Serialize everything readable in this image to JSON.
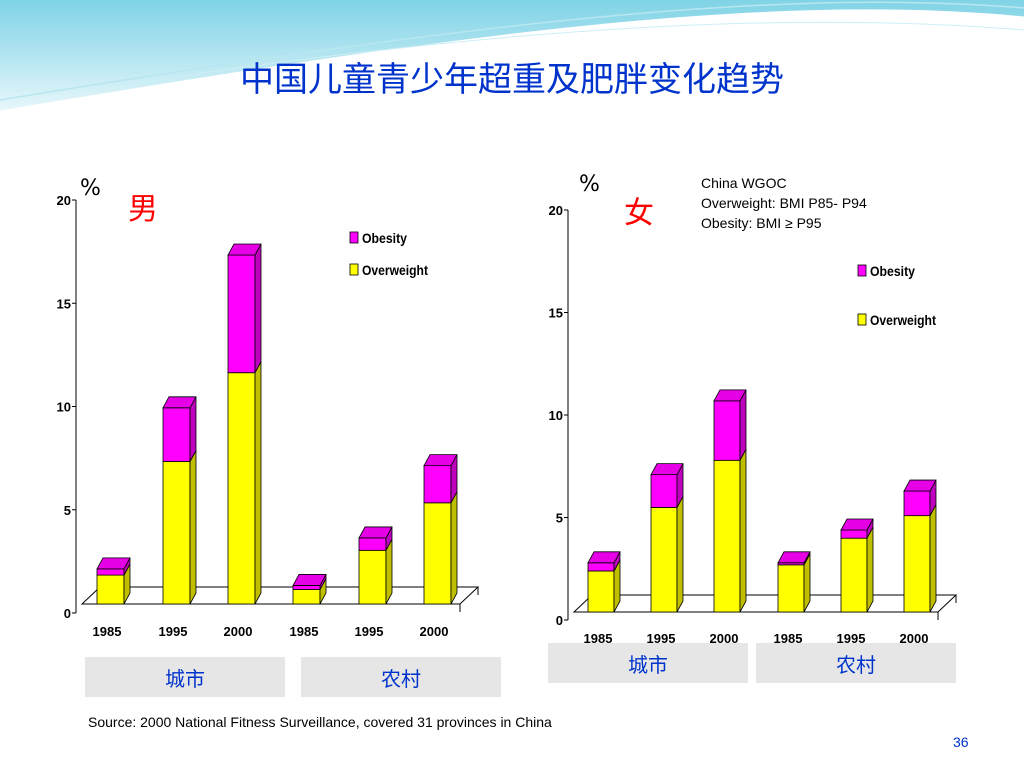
{
  "title": "中国儿童青少年超重及肥胖变化趋势",
  "colors": {
    "obesity": "#ff00ff",
    "overweight": "#ffff00",
    "title": "#0033cc",
    "gender": "#ff0000"
  },
  "note": {
    "line1": "China WGOC",
    "line2": "Overweight: BMI P85- P94",
    "line3": "Obesity: BMI ≥ P95"
  },
  "source": "Source: 2000 National Fitness Surveillance, covered 31 provinces in China",
  "page_number": "36",
  "chart_data": [
    {
      "type": "bar",
      "stacked": true,
      "unit_label": "%",
      "gender_label": "男",
      "categories": [
        "1985",
        "1995",
        "2000",
        "1985",
        "1995",
        "2000"
      ],
      "groups": [
        {
          "label": "城市",
          "span": [
            0,
            2
          ]
        },
        {
          "label": "农村",
          "span": [
            3,
            5
          ]
        }
      ],
      "series": [
        {
          "name": "Overweight",
          "values": [
            1.4,
            6.9,
            11.2,
            0.7,
            2.6,
            4.9
          ]
        },
        {
          "name": "Obesity",
          "values": [
            0.3,
            2.6,
            5.7,
            0.2,
            0.6,
            1.8
          ]
        }
      ],
      "legend_order": [
        "Obesity",
        "Overweight"
      ],
      "ylim": [
        0,
        20
      ],
      "yticks": [
        0,
        5,
        10,
        15,
        20
      ],
      "legend_position": "top-right"
    },
    {
      "type": "bar",
      "stacked": true,
      "unit_label": "%",
      "gender_label": "女",
      "categories": [
        "1985",
        "1995",
        "2000",
        "1985",
        "1995",
        "2000"
      ],
      "groups": [
        {
          "label": "城市",
          "span": [
            0,
            2
          ]
        },
        {
          "label": "农村",
          "span": [
            3,
            5
          ]
        }
      ],
      "series": [
        {
          "name": "Overweight",
          "values": [
            2.0,
            5.1,
            7.4,
            2.3,
            3.6,
            4.7
          ]
        },
        {
          "name": "Obesity",
          "values": [
            0.4,
            1.6,
            2.9,
            0.1,
            0.4,
            1.2
          ]
        }
      ],
      "legend_order": [
        "Obesity",
        "Overweight"
      ],
      "ylim": [
        0,
        20
      ],
      "yticks": [
        0,
        5,
        10,
        15,
        20
      ],
      "legend_position": "top-right"
    }
  ]
}
